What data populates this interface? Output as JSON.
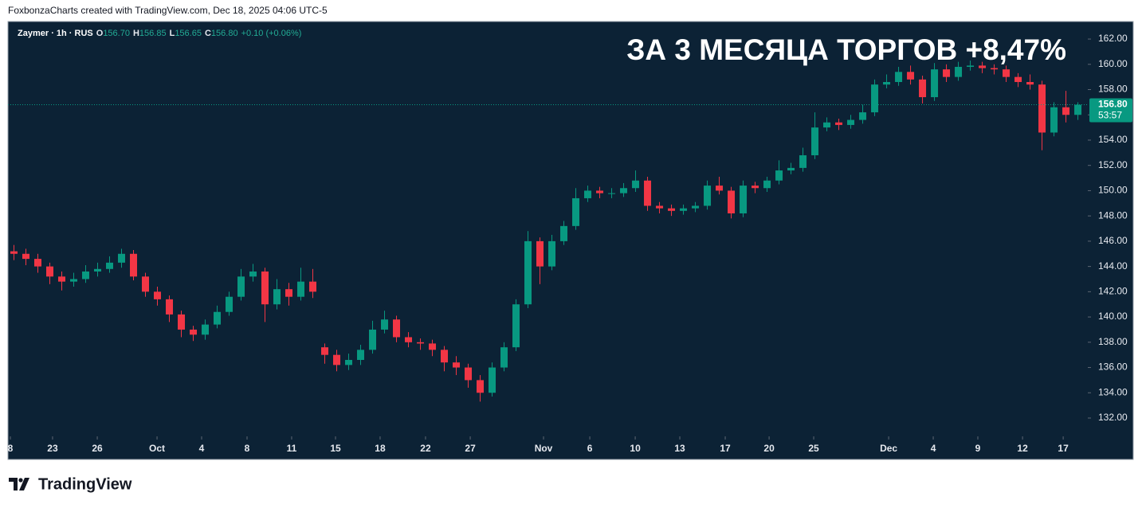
{
  "header": "FoxbonzaCharts created with TradingView.com, Dec 18, 2025 04:06 UTC-5",
  "brand": "TradingView",
  "chart_data": {
    "type": "candlestick",
    "title": "ЗА 3 МЕСЯЦА ТОРГОВ +8,47%",
    "legend": {
      "symbol": "Zaymer · 1h · RUS",
      "fields": [
        {
          "key": "O",
          "value": "156.70"
        },
        {
          "key": "H",
          "value": "156.85"
        },
        {
          "key": "L",
          "value": "156.65"
        },
        {
          "key": "C",
          "value": "156.80"
        }
      ],
      "change": "+0.10 (+0.06%)"
    },
    "up_color": "#089981",
    "down_color": "#f23645",
    "open": [
      145.2,
      145.0,
      144.6,
      144.0,
      143.2,
      142.8,
      143.0,
      143.6,
      143.8,
      144.3,
      145.0,
      143.2,
      142.0,
      141.4,
      140.2,
      139.0,
      138.6,
      139.4,
      140.4,
      141.6,
      143.2,
      143.6,
      141.0,
      142.2,
      141.6,
      142.8,
      137.6,
      137.0,
      136.2,
      136.6,
      137.4,
      139.0,
      139.8,
      138.4,
      138.0,
      137.9,
      137.4,
      136.4,
      136.0,
      135.0,
      134.0,
      136.0,
      137.6,
      141.0,
      146.0,
      144.0,
      146.0,
      147.2,
      149.4,
      150.0,
      149.8,
      149.8,
      150.2,
      150.8,
      148.8,
      148.6,
      148.4,
      148.6,
      148.8,
      150.4,
      150.0,
      148.2,
      150.4,
      150.2,
      150.8,
      151.6,
      151.8,
      152.8,
      155.0,
      155.4,
      155.2,
      155.6,
      156.2,
      158.4,
      158.6,
      159.4,
      158.8,
      157.4,
      159.6,
      159.0,
      159.8,
      159.9,
      159.7,
      159.6,
      159.0,
      158.6,
      158.4,
      154.6,
      156.6,
      156.0
    ],
    "high": [
      145.7,
      145.4,
      145.0,
      144.3,
      143.6,
      143.5,
      144.1,
      144.3,
      144.8,
      145.4,
      145.3,
      143.5,
      142.4,
      141.7,
      140.5,
      139.3,
      139.8,
      140.9,
      142.0,
      143.8,
      144.2,
      143.9,
      143.0,
      142.7,
      143.9,
      143.8,
      137.9,
      137.4,
      137.1,
      137.8,
      139.7,
      140.5,
      140.1,
      138.8,
      138.3,
      138.2,
      137.7,
      136.9,
      136.3,
      135.4,
      136.4,
      138.0,
      141.4,
      146.8,
      146.3,
      146.5,
      147.6,
      150.2,
      150.4,
      150.3,
      150.2,
      150.6,
      151.6,
      151.1,
      149.1,
      148.9,
      148.9,
      149.1,
      150.8,
      151.1,
      150.3,
      150.8,
      150.7,
      151.1,
      152.4,
      152.2,
      153.4,
      156.2,
      155.8,
      155.7,
      156.0,
      156.8,
      158.8,
      159.2,
      159.8,
      159.9,
      159.1,
      160.1,
      160.0,
      160.2,
      160.3,
      160.2,
      160.0,
      159.9,
      159.3,
      159.2,
      158.7,
      157.0,
      157.9,
      157.0
    ],
    "low": [
      144.5,
      144.1,
      143.5,
      142.6,
      142.1,
      142.4,
      142.7,
      143.2,
      143.5,
      143.9,
      142.9,
      141.6,
      140.9,
      139.6,
      138.4,
      138.1,
      138.2,
      139.1,
      140.1,
      141.3,
      142.8,
      139.6,
      140.6,
      140.9,
      141.3,
      141.5,
      136.3,
      135.7,
      135.8,
      136.2,
      137.1,
      138.7,
      138.0,
      137.6,
      137.4,
      136.9,
      135.7,
      135.4,
      134.4,
      133.3,
      133.7,
      135.7,
      137.3,
      140.7,
      142.6,
      143.7,
      145.7,
      146.9,
      149.1,
      149.4,
      149.4,
      149.5,
      149.9,
      148.4,
      148.2,
      148.0,
      148.1,
      148.3,
      148.5,
      149.7,
      147.8,
      147.9,
      149.8,
      149.9,
      150.5,
      151.3,
      151.5,
      152.5,
      154.7,
      154.8,
      154.9,
      155.3,
      155.9,
      158.1,
      158.3,
      158.4,
      156.9,
      157.1,
      158.6,
      158.7,
      159.5,
      159.3,
      159.2,
      158.6,
      158.2,
      158.0,
      153.2,
      154.3,
      155.4,
      155.6
    ],
    "close": [
      145.0,
      144.6,
      144.0,
      143.2,
      142.8,
      143.0,
      143.6,
      143.8,
      144.3,
      145.0,
      143.2,
      142.0,
      141.4,
      140.2,
      139.0,
      138.6,
      139.4,
      140.4,
      141.6,
      143.2,
      143.6,
      141.0,
      142.2,
      141.6,
      142.8,
      142.0,
      137.0,
      136.2,
      136.6,
      137.4,
      139.0,
      139.8,
      138.4,
      138.0,
      137.9,
      137.4,
      136.4,
      136.0,
      135.0,
      134.0,
      136.0,
      137.6,
      141.0,
      146.0,
      144.0,
      146.0,
      147.2,
      149.4,
      150.0,
      149.8,
      149.8,
      150.2,
      150.8,
      148.8,
      148.6,
      148.4,
      148.6,
      148.8,
      150.4,
      150.0,
      148.2,
      150.4,
      150.2,
      150.8,
      151.6,
      151.8,
      152.8,
      155.0,
      155.4,
      155.2,
      155.6,
      156.2,
      158.4,
      158.6,
      159.4,
      158.8,
      157.4,
      159.6,
      159.0,
      159.8,
      159.9,
      159.7,
      159.6,
      159.0,
      158.6,
      158.4,
      154.6,
      156.6,
      156.0,
      156.8
    ],
    "ylim": [
      130.55,
      163.39
    ],
    "yticks": [
      {
        "value": 132,
        "label": "132.00"
      },
      {
        "value": 134,
        "label": "134.00"
      },
      {
        "value": 136,
        "label": "136.00"
      },
      {
        "value": 138,
        "label": "138.00"
      },
      {
        "value": 140,
        "label": "140.00"
      },
      {
        "value": 142,
        "label": "142.00"
      },
      {
        "value": 144,
        "label": "144.00"
      },
      {
        "value": 146,
        "label": "146.00"
      },
      {
        "value": 148,
        "label": "148.00"
      },
      {
        "value": 150,
        "label": "150.00"
      },
      {
        "value": 152,
        "label": "152.00"
      },
      {
        "value": 154,
        "label": "154.00"
      },
      {
        "value": 156,
        "label": "156.00"
      },
      {
        "value": 158,
        "label": "158.00"
      },
      {
        "value": 160,
        "label": "160.00"
      },
      {
        "value": 162,
        "label": "162.00"
      }
    ],
    "xlim": [
      -0.5,
      89.83
    ],
    "xticks": [
      {
        "value": -0.3,
        "label": "8"
      },
      {
        "value": 3.23,
        "label": "23"
      },
      {
        "value": 6.97,
        "label": "26"
      },
      {
        "value": 11.97,
        "label": "Oct"
      },
      {
        "value": 15.7,
        "label": "4"
      },
      {
        "value": 19.5,
        "label": "8"
      },
      {
        "value": 23.23,
        "label": "11"
      },
      {
        "value": 26.9,
        "label": "15"
      },
      {
        "value": 30.63,
        "label": "18"
      },
      {
        "value": 34.43,
        "label": "22"
      },
      {
        "value": 38.17,
        "label": "27"
      },
      {
        "value": 44.3,
        "label": "Nov"
      },
      {
        "value": 48.17,
        "label": "6"
      },
      {
        "value": 51.97,
        "label": "10"
      },
      {
        "value": 55.7,
        "label": "13"
      },
      {
        "value": 59.5,
        "label": "17"
      },
      {
        "value": 63.17,
        "label": "20"
      },
      {
        "value": 66.9,
        "label": "25"
      },
      {
        "value": 73.17,
        "label": "Dec"
      },
      {
        "value": 76.9,
        "label": "4"
      },
      {
        "value": 80.63,
        "label": "9"
      },
      {
        "value": 84.37,
        "label": "12"
      },
      {
        "value": 87.77,
        "label": "17"
      }
    ],
    "last_price": {
      "value": 156.8,
      "label": "156.80",
      "countdown": "53:57",
      "color": "#089981"
    }
  }
}
